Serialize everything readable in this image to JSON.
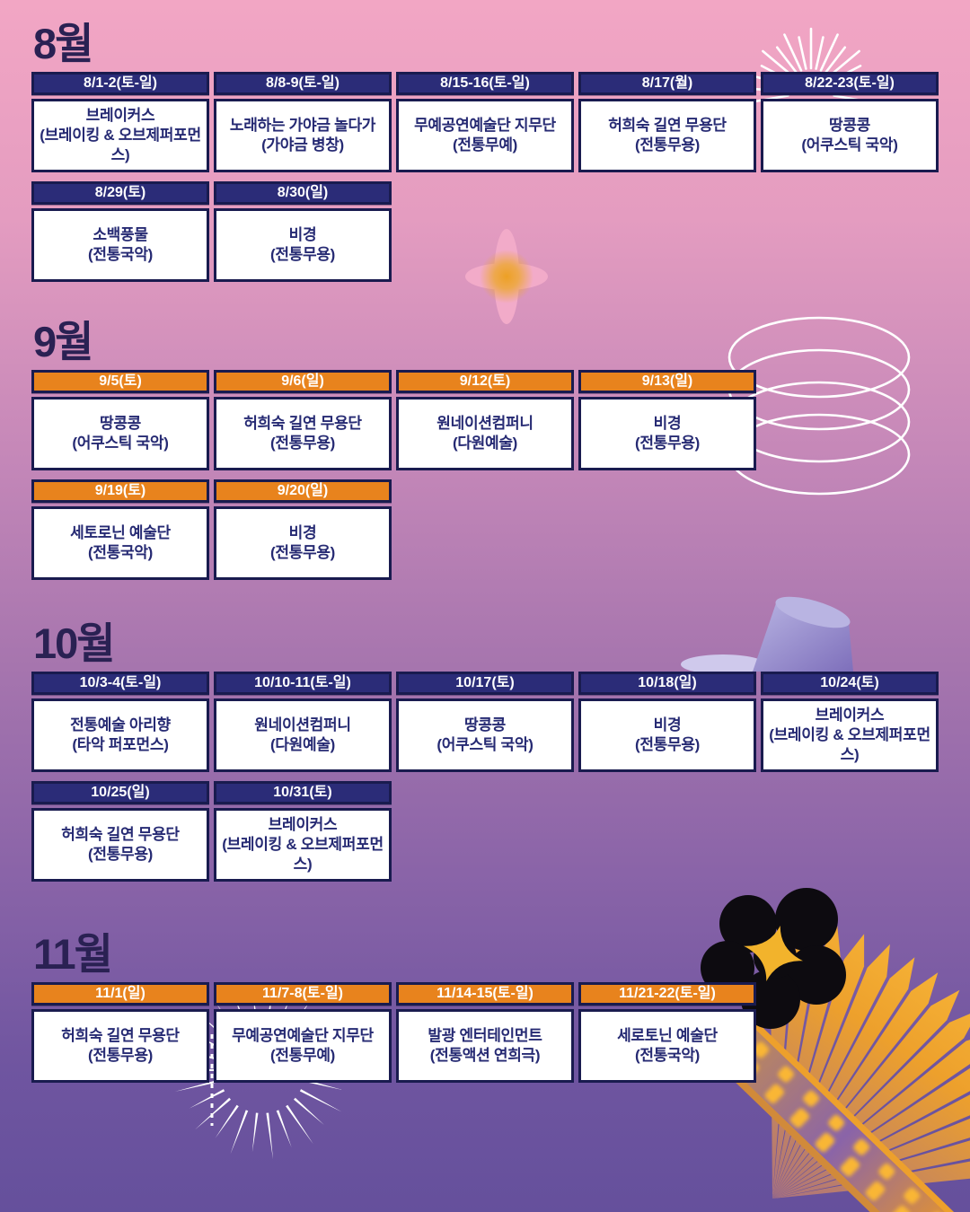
{
  "poster": {
    "colors": {
      "navy_header": "#2b2c78",
      "orange_header": "#e8831d",
      "card_border": "#191b4f",
      "card_text": "#262a73",
      "title_text": "#2a2153",
      "background_top_pink": "#f2a6c4",
      "background_bottom_purple": "#65509c"
    },
    "months": [
      {
        "title": "8월",
        "accent": "#2b2c78",
        "rows": [
          [
            {
              "date": "8/1-2(토-일)",
              "name": "브레이커스",
              "genre": "(브레이킹 & 오브제퍼포먼스)"
            },
            {
              "date": "8/8-9(토-일)",
              "name": "노래하는 가야금 놀다가",
              "genre": "(가야금 병창)"
            },
            {
              "date": "8/15-16(토-일)",
              "name": "무예공연예술단 지무단",
              "genre": "(전통무예)"
            },
            {
              "date": "8/17(월)",
              "name": "허희숙 길연 무용단",
              "genre": "(전통무용)"
            },
            {
              "date": "8/22-23(토-일)",
              "name": "땅콩콩",
              "genre": "(어쿠스틱 국악)"
            }
          ],
          [
            {
              "date": "8/29(토)",
              "name": "소백풍물",
              "genre": "(전통국악)"
            },
            {
              "date": "8/30(일)",
              "name": "비경",
              "genre": "(전통무용)"
            }
          ]
        ]
      },
      {
        "title": "9월",
        "accent": "#e8831d",
        "rows": [
          [
            {
              "date": "9/5(토)",
              "name": "땅콩콩",
              "genre": "(어쿠스틱 국악)"
            },
            {
              "date": "9/6(일)",
              "name": "허희숙 길연 무용단",
              "genre": "(전통무용)"
            },
            {
              "date": "9/12(토)",
              "name": "원네이션컴퍼니",
              "genre": "(다원예술)"
            },
            {
              "date": "9/13(일)",
              "name": "비경",
              "genre": "(전통무용)"
            }
          ],
          [
            {
              "date": "9/19(토)",
              "name": "세토로닌 예술단",
              "genre": "(전통국악)"
            },
            {
              "date": "9/20(일)",
              "name": "비경",
              "genre": "(전통무용)"
            }
          ]
        ]
      },
      {
        "title": "10월",
        "accent": "#2b2c78",
        "rows": [
          [
            {
              "date": "10/3-4(토-일)",
              "name": "전통예술 아리향",
              "genre": "(타악 퍼포먼스)"
            },
            {
              "date": "10/10-11(토-일)",
              "name": "원네이션컴퍼니",
              "genre": "(다원예술)"
            },
            {
              "date": "10/17(토)",
              "name": "땅콩콩",
              "genre": "(어쿠스틱 국악)"
            },
            {
              "date": "10/18(일)",
              "name": "비경",
              "genre": "(전통무용)"
            },
            {
              "date": "10/24(토)",
              "name": "브레이커스",
              "genre": "(브레이킹 & 오브제퍼포먼스)"
            }
          ],
          [
            {
              "date": "10/25(일)",
              "name": "허희숙 길연 무용단",
              "genre": "(전통무용)"
            },
            {
              "date": "10/31(토)",
              "name": "브레이커스",
              "genre": "(브레이킹 & 오브제퍼포먼스)"
            }
          ]
        ]
      },
      {
        "title": "11월",
        "accent": "#e8831d",
        "rows": [
          [
            {
              "date": "11/1(일)",
              "name": "허희숙 길연 무용단",
              "genre": "(전통무용)"
            },
            {
              "date": "11/7-8(토-일)",
              "name": "무예공연예술단 지무단",
              "genre": "(전통무예)"
            },
            {
              "date": "11/14-15(토-일)",
              "name": "발광 엔터테인먼트",
              "genre": "(전통액션 연희극)"
            },
            {
              "date": "11/21-22(토-일)",
              "name": "세로토닌 예술단",
              "genre": "(전통국악)"
            }
          ]
        ]
      }
    ],
    "decorations": [
      "sunburst-icon",
      "flower-cross-icon",
      "coil-spring-icon",
      "tilted-cup-icon",
      "firework-burst-icon",
      "accordion-icon",
      "black-flower-icon"
    ]
  }
}
